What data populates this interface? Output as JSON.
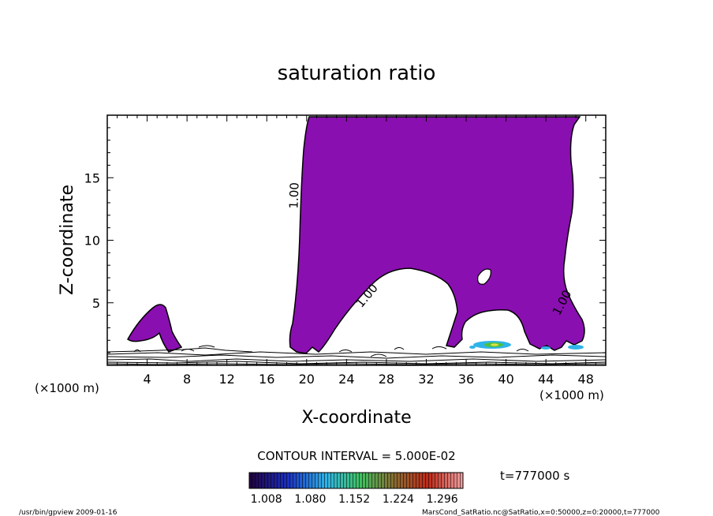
{
  "chart_data": {
    "type": "contour",
    "title": "saturation ratio",
    "xlabel": "X-coordinate",
    "ylabel": "Z-coordinate",
    "x_unit": "(×1000 m)",
    "x_range": [
      0,
      50
    ],
    "z_range": [
      0,
      20
    ],
    "x_ticks": [
      "4",
      "8",
      "12",
      "16",
      "20",
      "24",
      "28",
      "32",
      "36",
      "40",
      "44",
      "48"
    ],
    "z_ticks": [
      "5",
      "10",
      "15"
    ],
    "contour_label": "1.00",
    "contour_interval": "CONTOUR INTERVAL = 5.000E-02",
    "colorbar_ticks": [
      "1.008",
      "1.080",
      "1.152",
      "1.224",
      "1.296"
    ],
    "colorbar_range": [
      0.98,
      1.33
    ],
    "time_label": "t=777000 s",
    "footer_left": "/usr/bin/gpview  2009-01-16",
    "footer_right": "MarsCond_SatRatio.nc@SatRatio,x=0:50000,z=0:20000,t=777000",
    "fill_color": "#8a0fb0",
    "regions": [
      {
        "name": "main-supersaturated-region",
        "x": [
          19.4,
          47.2
        ],
        "z": [
          0.6,
          19.8
        ]
      },
      {
        "name": "left-supersaturated-plume",
        "x": [
          2.0,
          6.0
        ],
        "z": [
          0.9,
          4.9
        ]
      }
    ]
  }
}
